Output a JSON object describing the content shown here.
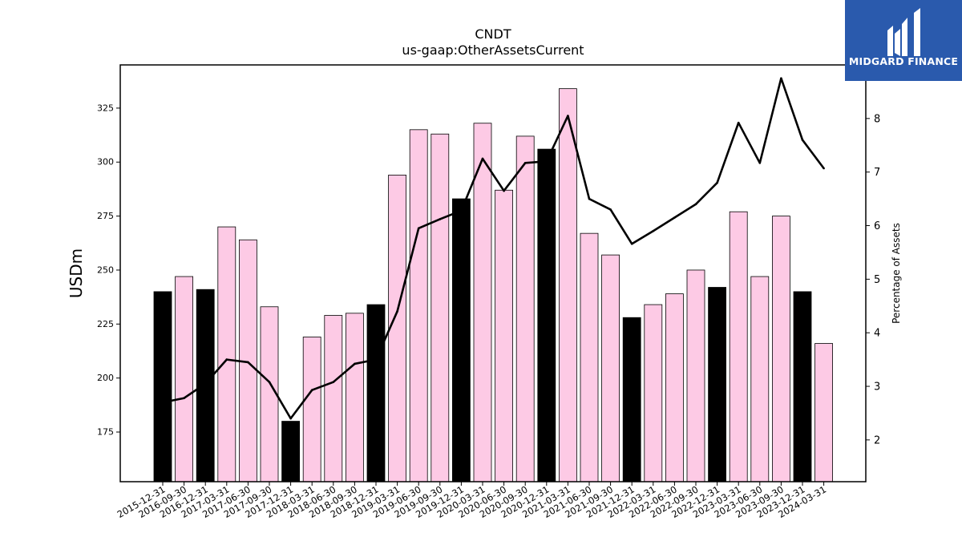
{
  "chart_data": {
    "type": "bar",
    "title": "CNDT",
    "subtitle": "us-gaap:OtherAssetsCurrent",
    "ylabel": "USDm",
    "y2label": "Percentage of Assets",
    "ylim": [
      152,
      345
    ],
    "y2lim": [
      1.22,
      9.0
    ],
    "yticks": [
      175,
      200,
      225,
      250,
      275,
      300,
      325
    ],
    "y2ticks": [
      2,
      3,
      4,
      5,
      6,
      7,
      8
    ],
    "categories": [
      "2015-12-31",
      "2016-09-30",
      "2016-12-31",
      "2017-03-31",
      "2017-06-30",
      "2017-09-30",
      "2017-12-31",
      "2018-03-31",
      "2018-06-30",
      "2018-09-30",
      "2018-12-31",
      "2019-03-31",
      "2019-06-30",
      "2019-09-30",
      "2019-12-31",
      "2020-03-31",
      "2020-06-30",
      "2020-09-30",
      "2020-12-31",
      "2021-03-31",
      "2021-06-30",
      "2021-09-30",
      "2021-12-31",
      "2022-03-31",
      "2022-06-30",
      "2022-09-30",
      "2022-12-31",
      "2023-03-31",
      "2023-06-30",
      "2023-09-30",
      "2023-12-31",
      "2024-03-31"
    ],
    "series": [
      {
        "type": "bar",
        "axis": "left",
        "values": [
          240,
          247,
          241,
          270,
          264,
          233,
          180,
          219,
          229,
          230,
          234,
          294,
          315,
          313,
          283,
          318,
          287,
          312,
          306,
          334,
          267,
          257,
          228,
          234,
          239,
          250,
          242,
          277,
          247,
          275,
          240,
          216
        ],
        "year_end": [
          true,
          false,
          true,
          false,
          false,
          false,
          true,
          false,
          false,
          false,
          true,
          false,
          false,
          false,
          true,
          false,
          false,
          false,
          true,
          false,
          false,
          false,
          true,
          false,
          false,
          false,
          true,
          false,
          false,
          false,
          true,
          false
        ]
      },
      {
        "type": "line",
        "axis": "right",
        "values": [
          2.7,
          2.78,
          3.05,
          3.5,
          3.45,
          3.08,
          2.4,
          2.93,
          3.08,
          3.42,
          3.5,
          4.4,
          5.95,
          6.12,
          6.28,
          7.25,
          6.65,
          7.17,
          7.2,
          8.05,
          6.5,
          6.3,
          5.66,
          5.9,
          6.15,
          6.4,
          6.8,
          7.92,
          7.17,
          8.75,
          7.6,
          7.07
        ]
      }
    ],
    "colors": {
      "bar_year_end": "#000000",
      "bar_other": "#fdcae5",
      "line": "#000000"
    }
  },
  "logo": {
    "text": "MIDGARD FINANCE",
    "background": "#2a5aad"
  }
}
